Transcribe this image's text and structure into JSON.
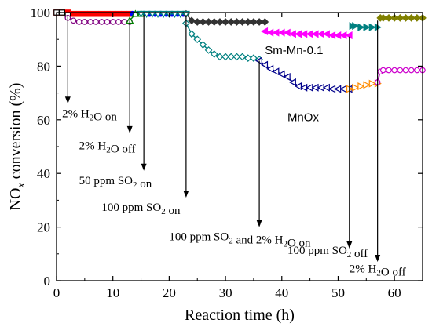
{
  "chart_data": {
    "type": "line",
    "xlabel": "Reaction time (h)",
    "ylabel_main": "NO",
    "ylabel_sub": "x",
    "ylabel_rest": " conversion (%)",
    "xlim": [
      0,
      65
    ],
    "ylim": [
      0,
      100
    ],
    "xticks": [
      0,
      10,
      20,
      30,
      40,
      50,
      60
    ],
    "yticks": [
      0,
      20,
      40,
      60,
      80,
      100
    ],
    "series": [
      {
        "name": "Sm-Mn-0.1",
        "segments": [
          {
            "color": "#ff0000",
            "marker": "square",
            "x": [
              0,
              1,
              2,
              3,
              4,
              5,
              6,
              7,
              8,
              9,
              10,
              11,
              12,
              13
            ],
            "y": [
              100,
              100,
              100,
              99.5,
              99.5,
              99.5,
              99.5,
              99.5,
              99.5,
              99.5,
              99.5,
              99.5,
              99.5,
              99.5
            ]
          },
          {
            "color": "#0000ff",
            "marker": "circle",
            "x": [
              13.5,
              14.5,
              15.5,
              16.5,
              17.5,
              18.5,
              19.5,
              20.5,
              21.5,
              22.5
            ],
            "y": [
              99.5,
              99.5,
              99.5,
              99.5,
              99.5,
              99.5,
              99.5,
              99.5,
              99.5,
              99.5
            ]
          },
          {
            "color": "#333333",
            "marker": "diamond",
            "x": [
              23,
              24,
              25,
              26,
              27,
              28,
              29,
              30,
              31,
              32,
              33,
              34,
              35,
              36,
              37
            ],
            "y": [
              99.5,
              97,
              96.5,
              96.5,
              96.5,
              96.5,
              96.5,
              96.5,
              96.5,
              96.5,
              96.5,
              96.5,
              96.5,
              96.5,
              96.5
            ]
          },
          {
            "color": "#ff00ff",
            "marker": "tri-left",
            "x": [
              37,
              38,
              39,
              40,
              41,
              42,
              43,
              44,
              45,
              46,
              47,
              48,
              49,
              50,
              51,
              52
            ],
            "y": [
              93,
              92.5,
              92.5,
              92.5,
              92.5,
              92,
              92,
              92,
              92,
              92,
              92,
              92,
              91.5,
              91.5,
              91.5,
              91.5
            ]
          },
          {
            "color": "#008080",
            "marker": "tri-right",
            "x": [
              52.5,
              53,
              54,
              55,
              56,
              57
            ],
            "y": [
              95,
              95,
              94.5,
              94.5,
              94.5,
              94.5
            ]
          },
          {
            "color": "#808000",
            "marker": "diamond",
            "x": [
              57.5,
              58,
              59,
              60,
              61,
              62,
              63,
              64,
              65
            ],
            "y": [
              98,
              98,
              98,
              98,
              98,
              98,
              98,
              98,
              98
            ]
          }
        ]
      },
      {
        "name": "MnOx",
        "segments": [
          {
            "color": "#000000",
            "marker": "square-open",
            "x": [
              0,
              1,
              2
            ],
            "y": [
              100,
              100,
              99
            ]
          },
          {
            "color": "#800080",
            "marker": "circle-open",
            "x": [
              2,
              3,
              4,
              5,
              6,
              7,
              8,
              9,
              10,
              11,
              12,
              13
            ],
            "y": [
              98,
              97,
              96.5,
              96.5,
              96.5,
              96.5,
              96.5,
              96.5,
              96.5,
              96.5,
              96.5,
              96.5
            ]
          },
          {
            "color": "#008000",
            "marker": "tri-up-open",
            "x": [
              13,
              14,
              15
            ],
            "y": [
              97,
              99.5,
              99.5
            ]
          },
          {
            "color": "#008080",
            "marker": "tri-down-open",
            "x": [
              15,
              16,
              17,
              18,
              19,
              20,
              21,
              22,
              23
            ],
            "y": [
              99.5,
              99.5,
              99.5,
              99.5,
              99.5,
              99.5,
              99.5,
              99.5,
              99.5
            ]
          },
          {
            "color": "#008080",
            "marker": "diamond-open",
            "x": [
              23,
              24,
              25,
              26,
              27,
              28,
              29,
              30,
              31,
              32,
              33,
              34,
              35,
              36
            ],
            "y": [
              96,
              92,
              90,
              88,
              86,
              84.5,
              83.5,
              83.5,
              83.5,
              83.5,
              83.5,
              83,
              83,
              82.5
            ]
          },
          {
            "color": "#00008b",
            "marker": "tri-left-open",
            "x": [
              36,
              37,
              38,
              39,
              40,
              41,
              42,
              43,
              44,
              45,
              46,
              47,
              48,
              49,
              50,
              51,
              52
            ],
            "y": [
              82,
              80.5,
              79,
              78,
              77,
              76,
              74,
              72.5,
              72,
              72,
              72,
              72,
              72,
              71.5,
              71.5,
              71.5,
              71.5
            ]
          },
          {
            "color": "#ff8c00",
            "marker": "tri-right-open",
            "x": [
              52,
              53,
              54,
              55,
              56,
              57
            ],
            "y": [
              71.5,
              72,
              72.5,
              73,
              73.5,
              73.5
            ]
          },
          {
            "color": "#cc00cc",
            "marker": "circle-open",
            "x": [
              57,
              57.5,
              58,
              59,
              60,
              61,
              62,
              63,
              64,
              65
            ],
            "y": [
              74,
              78,
              78.5,
              78.5,
              78.5,
              78.5,
              78.5,
              78.5,
              78.5,
              78.5
            ]
          }
        ]
      }
    ],
    "series_labels": [
      {
        "text": "Sm-Mn-0.1",
        "x": 37,
        "y": 84.5
      },
      {
        "text": "MnOx",
        "x": 41,
        "y": 59.5
      }
    ],
    "annotations": [
      {
        "main": "2% H",
        "sub": "2",
        "rest": "O on",
        "ax": 2,
        "ay_from": 99,
        "ay_to": 66,
        "tx": 1,
        "ty": 61
      },
      {
        "main": "2% H",
        "sub": "2",
        "rest": "O off",
        "ax": 13,
        "ay_from": 97,
        "ay_to": 55,
        "tx": 4,
        "ty": 49
      },
      {
        "main": "50 ppm SO",
        "sub": "2",
        "rest": " on",
        "ax": 15.5,
        "ay_from": 99,
        "ay_to": 41,
        "tx": 4,
        "ty": 36
      },
      {
        "main": "100 ppm SO",
        "sub": "2",
        "rest": " on",
        "ax": 23,
        "ay_from": 99,
        "ay_to": 31,
        "tx": 8,
        "ty": 26
      },
      {
        "main": "100 ppm SO",
        "sub": "2",
        "rest": " and 2% H",
        "sub2": "2",
        "rest2": "O on",
        "ax": 36,
        "ay_from": 82,
        "ay_to": 20,
        "tx": 20,
        "ty": 15
      },
      {
        "main": "100 ppm SO",
        "sub": "2",
        "rest": " off",
        "ax": 52,
        "ay_from": 91,
        "ay_to": 12,
        "tx": 41,
        "ty": 10
      },
      {
        "main": "2% H",
        "sub": "2",
        "rest": "O off",
        "ax": 57,
        "ay_from": 97,
        "ay_to": 7,
        "tx": 52,
        "ty": 3
      }
    ]
  }
}
